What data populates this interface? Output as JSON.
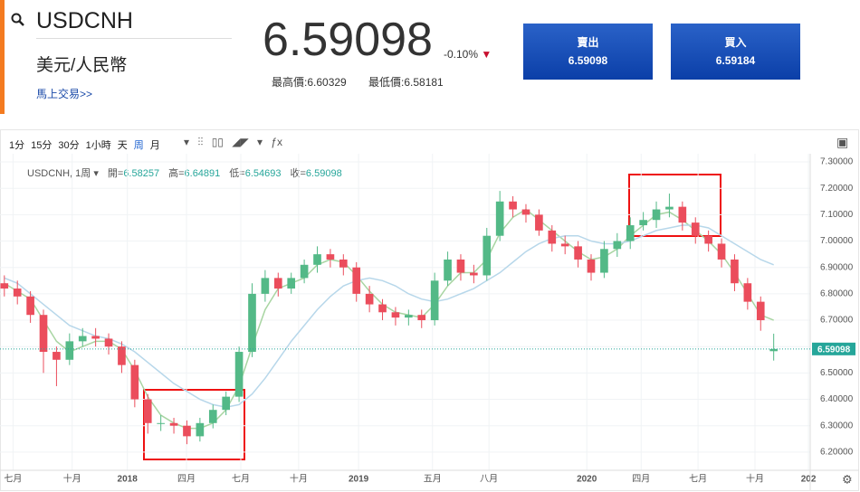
{
  "header": {
    "symbol": "USDCNH",
    "name": "美元/人民幣",
    "trade_link": "馬上交易>>",
    "price": "6.59098",
    "change": "-0.10%",
    "high": "最高價:6.60329",
    "low": "最低價:6.58181",
    "sell": {
      "label": "賣出",
      "price": "6.59098"
    },
    "buy": {
      "label": "買入",
      "price": "6.59184"
    }
  },
  "toolbar": {
    "intervals": [
      "1分",
      "15分",
      "30分",
      "1小時",
      "天",
      "周",
      "月"
    ]
  },
  "chart_data": {
    "type": "candlestick",
    "legend_symbol": "USDCNH, 1周",
    "legend_ohlc": [
      {
        "label": "開=",
        "value": "6.58257"
      },
      {
        "label": "高=",
        "value": "6.64891"
      },
      {
        "label": "低=",
        "value": "6.54693"
      },
      {
        "label": "收=",
        "value": "6.59098"
      }
    ],
    "current_price": {
      "value": 6.59098,
      "label": "6.59098"
    },
    "x": [
      0,
      3,
      6,
      9,
      12,
      15,
      18,
      21,
      24,
      27,
      30,
      33,
      36,
      39,
      42,
      45,
      48,
      51,
      54,
      57,
      60,
      63,
      66,
      69,
      72,
      75,
      78,
      81,
      84,
      87,
      90,
      93,
      96,
      99,
      102,
      105,
      108,
      111,
      114,
      117,
      120,
      123,
      126,
      129,
      132,
      135,
      138,
      141,
      144,
      147,
      150,
      153,
      156,
      159,
      162,
      165,
      168,
      171,
      174,
      177
    ],
    "open": [
      6.84,
      6.82,
      6.79,
      6.72,
      6.58,
      6.55,
      6.62,
      6.64,
      6.63,
      6.6,
      6.53,
      6.4,
      6.31,
      6.31,
      6.3,
      6.26,
      6.31,
      6.36,
      6.41,
      6.58,
      6.8,
      6.86,
      6.82,
      6.86,
      6.91,
      6.95,
      6.93,
      6.9,
      6.8,
      6.76,
      6.73,
      6.71,
      6.72,
      6.7,
      6.85,
      6.93,
      6.88,
      6.87,
      7.02,
      7.15,
      7.12,
      7.1,
      7.04,
      6.99,
      6.98,
      6.93,
      6.88,
      6.97,
      7.0,
      7.06,
      7.08,
      7.12,
      7.13,
      7.07,
      7.02,
      6.99,
      6.93,
      6.84,
      6.77,
      6.58257
    ],
    "high": [
      6.87,
      6.85,
      6.81,
      6.74,
      6.6,
      6.65,
      6.67,
      6.67,
      6.65,
      6.62,
      6.55,
      6.42,
      6.34,
      6.33,
      6.32,
      6.33,
      6.38,
      6.43,
      6.6,
      6.84,
      6.89,
      6.88,
      6.88,
      6.93,
      6.98,
      6.97,
      6.95,
      6.92,
      6.83,
      6.78,
      6.75,
      6.74,
      6.74,
      6.88,
      6.96,
      6.95,
      6.91,
      7.05,
      7.19,
      7.17,
      7.14,
      7.12,
      7.06,
      7.02,
      7.0,
      6.95,
      7.0,
      7.03,
      7.09,
      7.11,
      7.15,
      7.18,
      7.15,
      7.09,
      7.04,
      7.01,
      6.95,
      6.86,
      6.79,
      6.64891
    ],
    "low": [
      6.79,
      6.76,
      6.69,
      6.5,
      6.45,
      6.53,
      6.6,
      6.6,
      6.57,
      6.5,
      6.37,
      6.27,
      6.28,
      6.27,
      6.23,
      6.24,
      6.29,
      6.34,
      6.39,
      6.56,
      6.77,
      6.79,
      6.8,
      6.84,
      6.88,
      6.9,
      6.87,
      6.77,
      6.73,
      6.7,
      6.68,
      6.68,
      6.67,
      6.68,
      6.83,
      6.85,
      6.84,
      6.85,
      7.0,
      7.09,
      7.07,
      7.02,
      6.96,
      6.95,
      6.9,
      6.85,
      6.86,
      6.94,
      6.97,
      7.04,
      7.05,
      7.09,
      7.04,
      6.99,
      6.96,
      6.9,
      6.81,
      6.74,
      6.66,
      6.54693
    ],
    "close": [
      6.82,
      6.79,
      6.72,
      6.58,
      6.55,
      6.62,
      6.64,
      6.63,
      6.6,
      6.53,
      6.4,
      6.31,
      6.31,
      6.3,
      6.26,
      6.31,
      6.36,
      6.41,
      6.58,
      6.8,
      6.86,
      6.82,
      6.86,
      6.91,
      6.95,
      6.93,
      6.9,
      6.8,
      6.76,
      6.73,
      6.71,
      6.72,
      6.7,
      6.85,
      6.93,
      6.88,
      6.87,
      7.02,
      7.15,
      7.12,
      7.1,
      7.04,
      6.99,
      6.98,
      6.93,
      6.88,
      6.97,
      7.0,
      7.06,
      7.08,
      7.12,
      7.13,
      7.07,
      7.02,
      6.99,
      6.93,
      6.84,
      6.77,
      6.7,
      6.59098
    ],
    "up_color": "#53b987",
    "down_color": "#eb4d5c",
    "series": [
      {
        "color": "#a8d5a2",
        "values": [
          6.84,
          6.81,
          6.78,
          6.7,
          6.62,
          6.58,
          6.6,
          6.62,
          6.62,
          6.59,
          6.51,
          6.41,
          6.34,
          6.31,
          6.29,
          6.29,
          6.31,
          6.36,
          6.45,
          6.6,
          6.74,
          6.82,
          6.84,
          6.86,
          6.91,
          6.93,
          6.92,
          6.87,
          6.81,
          6.76,
          6.73,
          6.72,
          6.71,
          6.76,
          6.83,
          6.88,
          6.88,
          6.93,
          7.03,
          7.09,
          7.12,
          7.08,
          7.04,
          7.0,
          6.96,
          6.93,
          6.94,
          6.97,
          7.02,
          7.06,
          7.1,
          7.11,
          7.08,
          7.04,
          7.0,
          6.95,
          6.88,
          6.8,
          6.72,
          6.7
        ]
      },
      {
        "color": "#b7d7ea",
        "values": [
          6.86,
          6.84,
          6.8,
          6.76,
          6.72,
          6.68,
          6.66,
          6.64,
          6.63,
          6.61,
          6.58,
          6.54,
          6.5,
          6.46,
          6.43,
          6.4,
          6.38,
          6.37,
          6.38,
          6.42,
          6.48,
          6.55,
          6.62,
          6.68,
          6.74,
          6.79,
          6.83,
          6.85,
          6.86,
          6.85,
          6.83,
          6.8,
          6.78,
          6.77,
          6.78,
          6.8,
          6.82,
          6.85,
          6.88,
          6.92,
          6.96,
          6.99,
          7.01,
          7.02,
          7.02,
          7.0,
          6.99,
          6.99,
          7.0,
          7.02,
          7.04,
          7.05,
          7.06,
          7.06,
          7.05,
          7.02,
          6.99,
          6.96,
          6.93,
          6.91
        ]
      }
    ],
    "xlim": [
      -1,
      185.4
    ],
    "xticks": [
      {
        "value": 2,
        "label": "七月"
      },
      {
        "value": 15.6,
        "label": "十月"
      },
      {
        "value": 28.3,
        "label": "2018"
      },
      {
        "value": 41.9,
        "label": "四月"
      },
      {
        "value": 54.4,
        "label": "七月"
      },
      {
        "value": 67.7,
        "label": "十月"
      },
      {
        "value": 81.5,
        "label": "2019"
      },
      {
        "value": 98.5,
        "label": "五月"
      },
      {
        "value": 111.5,
        "label": "八月"
      },
      {
        "value": 134,
        "label": "2020"
      },
      {
        "value": 146.5,
        "label": "四月"
      },
      {
        "value": 159.6,
        "label": "七月"
      },
      {
        "value": 172.7,
        "label": "十月"
      },
      {
        "value": 185,
        "label": "202"
      }
    ],
    "ylim": [
      6.131,
      7.331
    ],
    "yticks": [
      {
        "value": 7.3,
        "label": "7.30000"
      },
      {
        "value": 7.2,
        "label": "7.20000"
      },
      {
        "value": 7.1,
        "label": "7.10000"
      },
      {
        "value": 7.0,
        "label": "7.00000"
      },
      {
        "value": 6.9,
        "label": "6.90000"
      },
      {
        "value": 6.8,
        "label": "6.80000"
      },
      {
        "value": 6.7,
        "label": "6.70000"
      },
      {
        "value": 6.6,
        "label": "6.60000"
      },
      {
        "value": 6.5,
        "label": "6.50000"
      },
      {
        "value": 6.4,
        "label": "6.40000"
      },
      {
        "value": 6.3,
        "label": "6.30000"
      },
      {
        "value": 6.2,
        "label": "6.20000"
      }
    ],
    "grid": true
  }
}
